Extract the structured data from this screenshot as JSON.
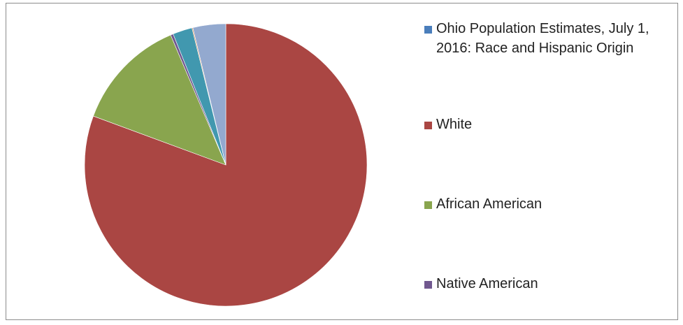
{
  "chart_data": {
    "type": "pie",
    "start_angle_deg": 0,
    "direction": "clockwise",
    "slices": [
      {
        "label": "Ohio Population Estimates, July 1, 2016: Race and Hispanic Origin",
        "value": 0,
        "color": "#4a7ebb"
      },
      {
        "label": "White",
        "value": 79.5,
        "color": "#aa4643"
      },
      {
        "label": "African American",
        "value": 12.8,
        "color": "#89a54e"
      },
      {
        "label": "Native American",
        "value": 0.3,
        "color": "#71588f"
      },
      {
        "label": "",
        "value": 2.2,
        "color": "#4198af"
      },
      {
        "label": "",
        "value": 0.1,
        "color": "#db843d"
      },
      {
        "label": "",
        "value": 3.7,
        "color": "#93a9cf"
      }
    ],
    "legend_placement": "right",
    "legend_entries": [
      {
        "label": "Ohio Population Estimates, July 1, 2016: Race and Hispanic Origin",
        "color": "#4a7ebb"
      },
      {
        "label": "White",
        "color": "#aa4643"
      },
      {
        "label": "African American",
        "color": "#89a54e"
      },
      {
        "label": "Native American",
        "color": "#71588f"
      }
    ]
  }
}
